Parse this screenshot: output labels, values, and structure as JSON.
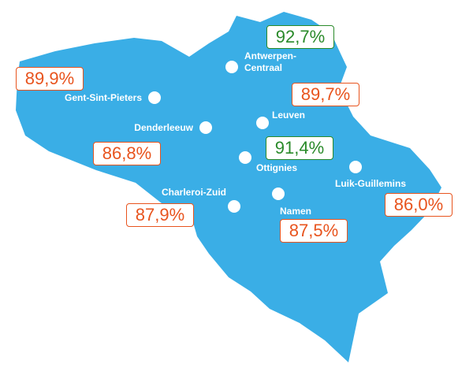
{
  "stations": [
    {
      "name": "Antwerpen-Centraal",
      "value": "92,7%",
      "color": "#2a8a2a"
    },
    {
      "name": "Gent-Sint-Pieters",
      "value": "89,9%",
      "color": "#e8541e"
    },
    {
      "name": "Leuven",
      "value": "89,7%",
      "color": "#e8541e"
    },
    {
      "name": "Denderleeuw",
      "value": "86,8%",
      "color": "#e8541e"
    },
    {
      "name": "Ottignies",
      "value": "91,4%",
      "color": "#2a8a2a"
    },
    {
      "name": "Luik-Guillemins",
      "value": "86,0%",
      "color": "#e8541e"
    },
    {
      "name": "Charleroi-Zuid",
      "value": "87,9%",
      "color": "#e8541e"
    },
    {
      "name": "Namen",
      "value": "87,5%",
      "color": "#e8541e"
    }
  ]
}
